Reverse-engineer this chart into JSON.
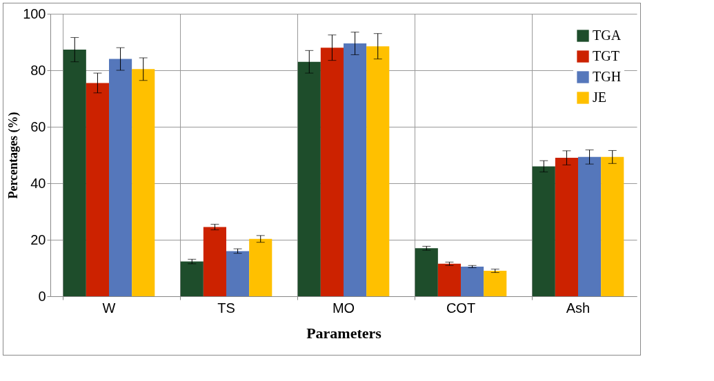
{
  "chart_data": {
    "type": "bar",
    "xlabel": "Parameters",
    "ylabel": "Percentages  (%)",
    "categories": [
      "W",
      "TS",
      "MO",
      "COT",
      "Ash"
    ],
    "series": [
      {
        "name": "TGA",
        "color": "#1e4d2b",
        "values": [
          87.3,
          12.3,
          83,
          17,
          46
        ],
        "errors": [
          4.3,
          0.8,
          4,
          0.7,
          2
        ]
      },
      {
        "name": "TGT",
        "color": "#cc2200",
        "values": [
          75.5,
          24.5,
          88,
          11.5,
          49
        ],
        "errors": [
          3.5,
          1,
          4.5,
          0.6,
          2.5
        ]
      },
      {
        "name": "TGH",
        "color": "#5577bb",
        "values": [
          84,
          16,
          89.5,
          10.5,
          49.3
        ],
        "errors": [
          4,
          0.8,
          4,
          0.4,
          2.5
        ]
      },
      {
        "name": "JE",
        "color": "#ffc000",
        "values": [
          80.4,
          20.3,
          88.5,
          9,
          49.3
        ],
        "errors": [
          4,
          1.2,
          4.5,
          0.6,
          2.3
        ]
      }
    ],
    "ylim": [
      0,
      100
    ],
    "yticks": [
      0,
      20,
      40,
      60,
      80,
      100
    ],
    "grid": true,
    "legend": "top right"
  }
}
